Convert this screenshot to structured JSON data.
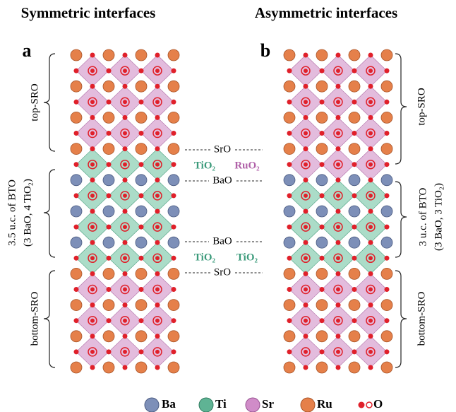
{
  "titles": {
    "symmetric": "Symmetric interfaces",
    "asymmetric": "Asymmetric interfaces"
  },
  "panels": [
    {
      "label": "a",
      "top": "top-SRO",
      "bto_line1": "3.5 u.c. of BTO",
      "bto_line2": "(3 BaO, 4 TiO₂)",
      "bottom": "bottom-SRO"
    },
    {
      "label": "b",
      "top": "top-SRO",
      "bto_line1": "3 u.c. of BTO",
      "bto_line2": "(3 BaO, 3 TiO₂)",
      "bottom": "bottom-SRO"
    }
  ],
  "interface_labels": {
    "top_ao": "SrO",
    "left_top_bo2": "TiO₂",
    "right_top_bo2": "RuO₂",
    "top_bao": "BaO",
    "bottom_bao": "BaO",
    "left_bottom_bo2": "TiO₂",
    "right_bottom_bo2": "TiO₂",
    "bottom_ao": "SrO"
  },
  "legend": [
    "Ba",
    "Ti",
    "Sr",
    "Ru",
    "O"
  ]
}
